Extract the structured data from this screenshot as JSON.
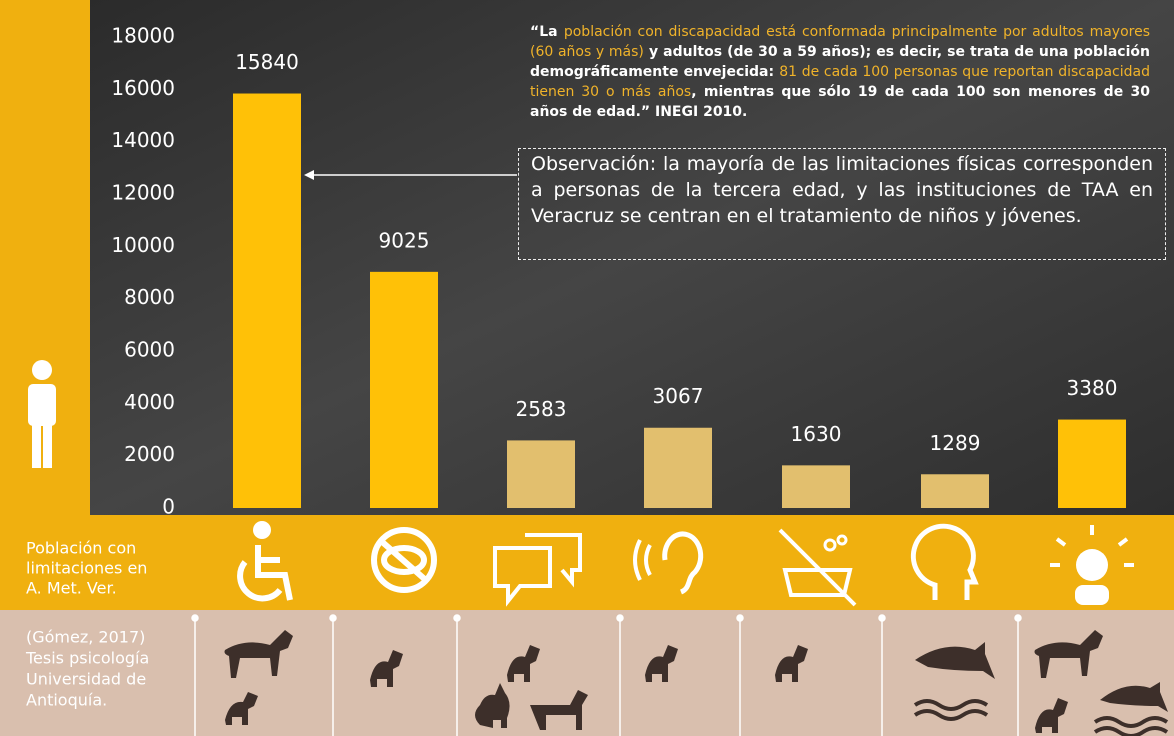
{
  "chart_data": {
    "type": "bar",
    "values": [
      15840,
      9025,
      2583,
      3067,
      1630,
      1289,
      3380
    ],
    "colors": [
      "#ffc107",
      "#ffc107",
      "#e2bf6e",
      "#e2bf6e",
      "#e2bf6e",
      "#e2bf6e",
      "#ffc107"
    ],
    "ylim": [
      0,
      18000
    ],
    "yticks": [
      0,
      2000,
      4000,
      6000,
      8000,
      10000,
      12000,
      14000,
      16000,
      18000
    ]
  },
  "quote": {
    "highlight_color": "#f0b32a",
    "segments": [
      {
        "text": "“La ",
        "highlight": false
      },
      {
        "text": "población con discapacidad está conformada principalmente por adultos mayores (60 años y más)",
        "highlight": true
      },
      {
        "text": " y adultos (de 30 a 59 años); es decir, se trata de una población demográficamente envejecida: ",
        "highlight": false
      },
      {
        "text": "81 de cada 100 personas que reportan discapacidad tienen 30 o más años",
        "highlight": true
      },
      {
        "text": ", mientras que sólo 19 de cada 100 son menores de 30 años de edad.” INEGI 2010.",
        "highlight": false
      }
    ]
  },
  "observation": "Observación: la mayoría de las limitaciones físicas corresponden a personas de la tercera edad, y las instituciones de TAA en Veracruz se centran en el tratamiento de niños y jóvenes.",
  "band_label": [
    "Población con",
    "limitaciones en",
    "A. Met. Ver."
  ],
  "source_label": [
    "(Gómez, 2017)",
    "Tesis psicología",
    "Universidad de",
    "Antioquía."
  ]
}
